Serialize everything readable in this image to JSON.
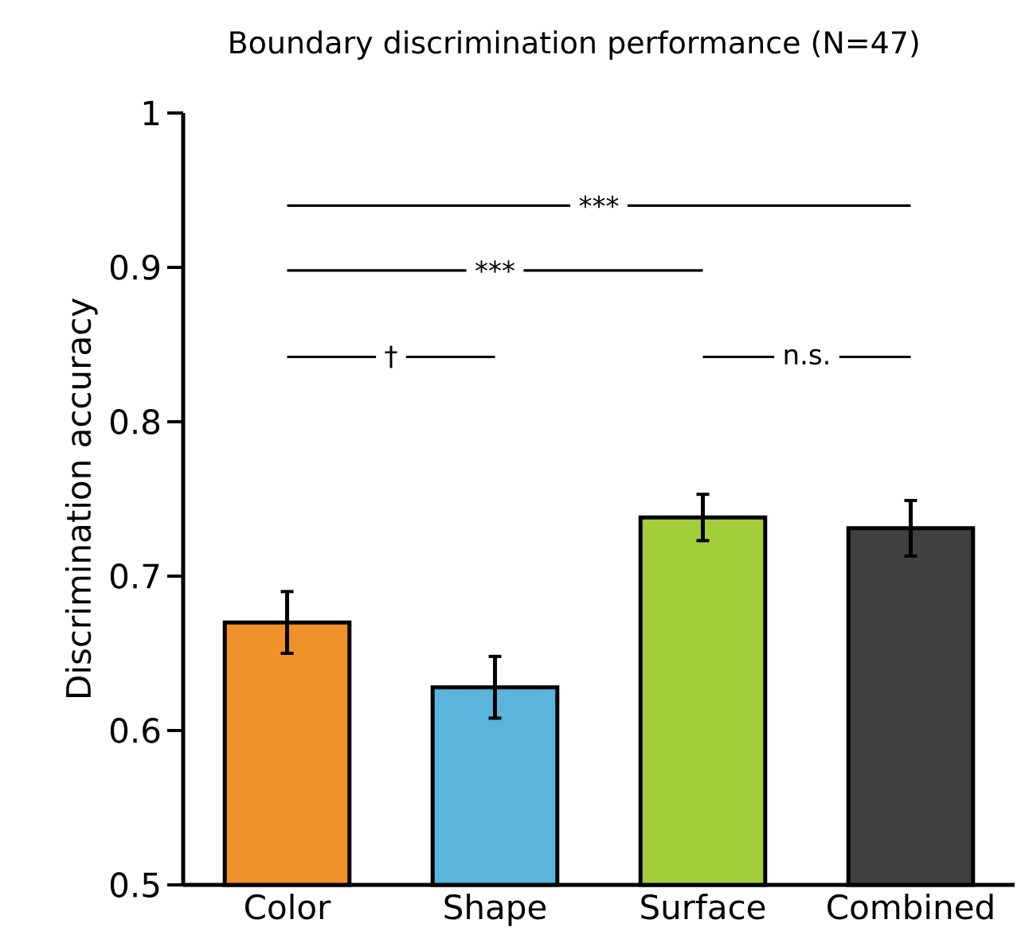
{
  "chart_data": {
    "type": "bar",
    "title": "Boundary discrimination performance (N=47)",
    "ylabel": "Discrimination accuracy",
    "categories": [
      "Color",
      "Shape",
      "Surface",
      "Combined"
    ],
    "values": [
      0.67,
      0.628,
      0.738,
      0.731
    ],
    "errors": [
      0.02,
      0.02,
      0.015,
      0.018
    ],
    "colors": [
      "#f0922a",
      "#5ab4dc",
      "#a4cd3a",
      "#404040"
    ],
    "ylim": [
      0.5,
      1
    ],
    "yticks": [
      0.5,
      0.6,
      0.7,
      0.8,
      0.9,
      1
    ],
    "annotations": [
      "***",
      "***",
      "†",
      "n.s."
    ]
  }
}
